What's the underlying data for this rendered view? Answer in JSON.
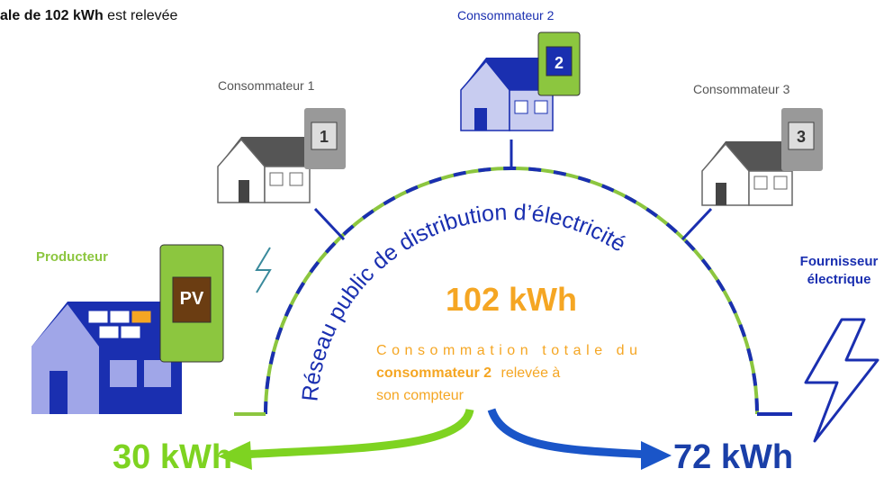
{
  "header": {
    "bold": "ale de 102 kWh",
    "text": "est relevée"
  },
  "consumers": [
    {
      "label": "Consommateur 1",
      "meter": "1"
    },
    {
      "label": "Consommateur 2",
      "meter": "2"
    },
    {
      "label": "Consommateur 3",
      "meter": "3"
    }
  ],
  "producer": {
    "label": "Producteur",
    "meter": "PV"
  },
  "supplier": {
    "lines": [
      "Fournisseur",
      "électrique"
    ]
  },
  "network": {
    "label": "Réseau public de distribution d’électricité"
  },
  "total": {
    "value": "102 kWh",
    "description": {
      "line1": "Consommation totale du",
      "bold": "consommateur 2",
      "line2": "relevée à",
      "line3": "son compteur"
    }
  },
  "split": {
    "producer": "30 kWh",
    "supplier": "72 kWh"
  }
}
